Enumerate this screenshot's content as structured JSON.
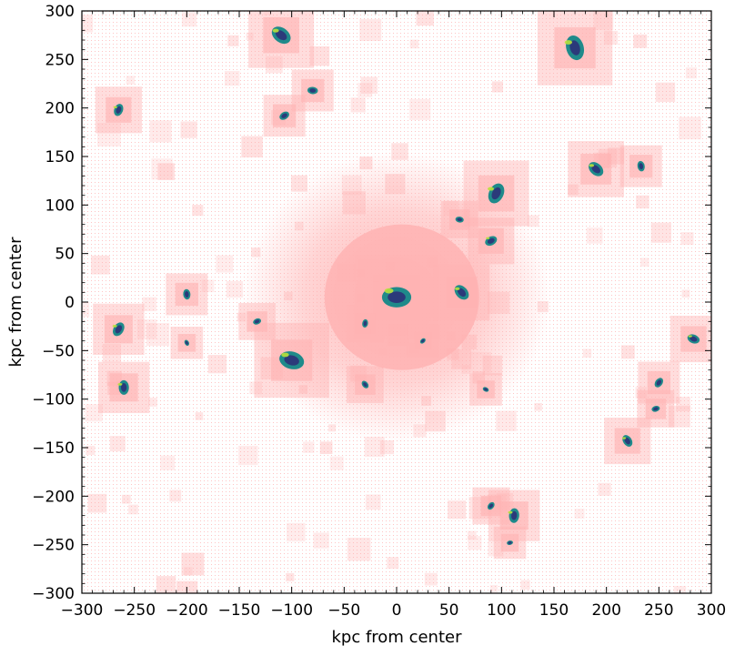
{
  "chart_data": {
    "type": "scatter",
    "title": "",
    "xlabel": "kpc from center",
    "ylabel": "kpc from center",
    "xlim": [
      -300,
      300
    ],
    "ylim": [
      -300,
      300
    ],
    "x_ticks": [
      -300,
      -250,
      -200,
      -150,
      -100,
      -50,
      0,
      50,
      100,
      150,
      200,
      250,
      300
    ],
    "y_ticks": [
      -300,
      -250,
      -200,
      -150,
      -100,
      -50,
      0,
      50,
      100,
      150,
      200,
      250,
      300
    ],
    "x_tick_labels": [
      "−300",
      "−250",
      "−200",
      "−150",
      "−100",
      "−50",
      "0",
      "50",
      "100",
      "150",
      "200",
      "250",
      "300"
    ],
    "y_tick_labels": [
      "−300",
      "−250",
      "−200",
      "−150",
      "−100",
      "−50",
      "0",
      "50",
      "100",
      "150",
      "200",
      "250",
      "300"
    ],
    "grid": false,
    "colors": {
      "diffuse_gas": "#ffb3b3",
      "dense_dark": "#2b3a7a",
      "dense_mid": "#1f8a8a",
      "dense_bright": "#b8e03a"
    },
    "clumps": [
      {
        "x": 0,
        "y": 5,
        "size": 14,
        "dense": true
      },
      {
        "x": -110,
        "y": 275,
        "size": 10,
        "dense": true
      },
      {
        "x": 170,
        "y": 262,
        "size": 12,
        "dense": true
      },
      {
        "x": -265,
        "y": 198,
        "size": 6,
        "dense": true
      },
      {
        "x": -107,
        "y": 192,
        "size": 5,
        "dense": true
      },
      {
        "x": -80,
        "y": 218,
        "size": 5,
        "dense": true
      },
      {
        "x": 190,
        "y": 137,
        "size": 8,
        "dense": true
      },
      {
        "x": 233,
        "y": 140,
        "size": 5,
        "dense": true
      },
      {
        "x": 95,
        "y": 112,
        "size": 10,
        "dense": true
      },
      {
        "x": 90,
        "y": 63,
        "size": 6,
        "dense": true
      },
      {
        "x": 60,
        "y": 85,
        "size": 4,
        "dense": true
      },
      {
        "x": 62,
        "y": 10,
        "size": 8,
        "dense": true
      },
      {
        "x": -200,
        "y": 8,
        "size": 5,
        "dense": true
      },
      {
        "x": -265,
        "y": -28,
        "size": 7,
        "dense": true
      },
      {
        "x": -133,
        "y": -20,
        "size": 4,
        "dense": true
      },
      {
        "x": -100,
        "y": -60,
        "size": 12,
        "dense": true
      },
      {
        "x": -30,
        "y": -85,
        "size": 4,
        "dense": true
      },
      {
        "x": -260,
        "y": -88,
        "size": 7,
        "dense": true
      },
      {
        "x": 250,
        "y": -83,
        "size": 5,
        "dense": true
      },
      {
        "x": 247,
        "y": -110,
        "size": 4,
        "dense": true
      },
      {
        "x": 283,
        "y": -38,
        "size": 6,
        "dense": true
      },
      {
        "x": 220,
        "y": -143,
        "size": 6,
        "dense": true
      },
      {
        "x": 112,
        "y": -220,
        "size": 7,
        "dense": true
      },
      {
        "x": 90,
        "y": -210,
        "size": 4,
        "dense": true
      },
      {
        "x": 108,
        "y": -248,
        "size": 3,
        "dense": true
      },
      {
        "x": 85,
        "y": -90,
        "size": 3,
        "dense": true
      },
      {
        "x": -200,
        "y": -42,
        "size": 3,
        "dense": true
      },
      {
        "x": -30,
        "y": -22,
        "size": 4,
        "dense": true
      },
      {
        "x": 25,
        "y": -40,
        "size": 3,
        "dense": true
      }
    ]
  }
}
